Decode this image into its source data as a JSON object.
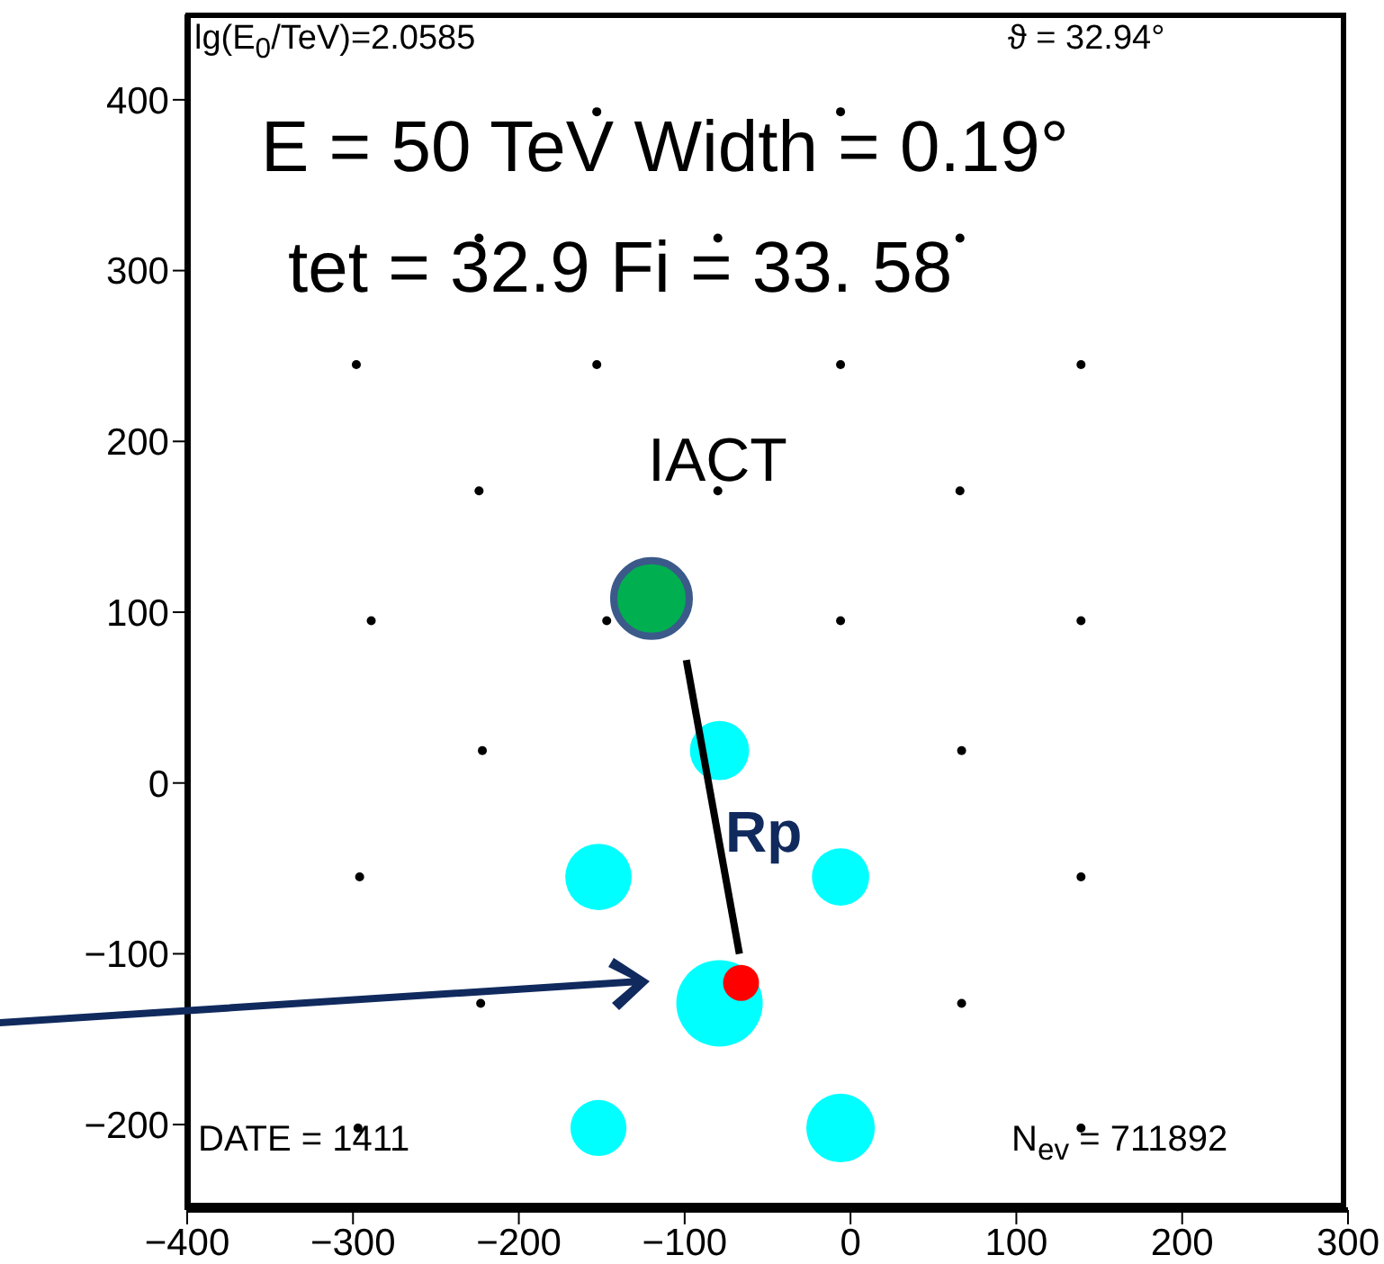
{
  "chart_data": {
    "type": "scatter",
    "xlim": [
      -400,
      300
    ],
    "ylim": [
      -250,
      450
    ],
    "xticks": [
      -400,
      -300,
      -200,
      -100,
      0,
      100,
      200,
      300
    ],
    "yticks": [
      -200,
      -100,
      0,
      100,
      200,
      300,
      400
    ],
    "series": [
      {
        "color": "#000000",
        "x": [
          -153,
          -6,
          -224,
          -80,
          66,
          -298,
          -153,
          -6,
          139,
          -224,
          -80,
          66,
          -289,
          -147,
          -6,
          139,
          -222,
          67,
          -296,
          139,
          -223,
          67,
          -297,
          139
        ],
        "values": [
          393,
          393,
          319,
          319,
          319,
          245,
          245,
          245,
          245,
          171,
          171,
          171,
          95,
          95,
          95,
          95,
          19,
          19,
          -55,
          -55,
          -129,
          -129,
          -202,
          -202
        ]
      },
      {
        "type": "bubble",
        "color": "#00ffff",
        "x": [
          -79,
          -152,
          -6,
          -79,
          -152,
          -6
        ],
        "values": [
          19,
          -55,
          -55,
          -129,
          -202,
          -202
        ],
        "sizes": [
          0.47,
          0.59,
          0.44,
          1,
          0.42,
          0.63
        ]
      },
      {
        "type": "scatter",
        "color": "#00b050",
        "x": [
          -120
        ],
        "values": [
          108
        ]
      },
      {
        "type": "line",
        "color": "#000000",
        "x": [
          -99,
          -67
        ],
        "values": [
          72,
          -100
        ]
      },
      {
        "type": "scatter",
        "color": "#ff0000",
        "x": [
          -66
        ],
        "values": [
          -117
        ]
      }
    ],
    "annotations": [
      "lg(E$_{0}$/TeV)=2.0585",
      "ϑ = 32.94°",
      "E = 50 TeV  Width = 0.19°",
      "tet = 32.9  Fi = 33. 58",
      "IACT",
      "Rp",
      "DATE = 1411",
      "N$_{ev}$ = 711892"
    ]
  }
}
